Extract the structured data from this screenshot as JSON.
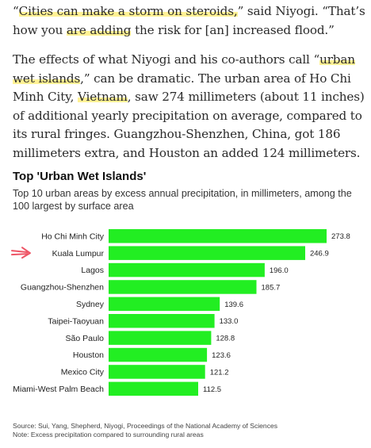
{
  "article": {
    "p1": {
      "t1": "“",
      "h1": "Cities can make a storm on steroids,",
      "t2": "” said Niyogi. “That’s how you ",
      "h2": "are adding",
      "t3": " the risk for [an] increased flood.”"
    },
    "p2": {
      "t1": "The effects of what Niyogi and his co-authors call “",
      "h1": "urban wet islands",
      "t2": ",” can be dramatic. The urban area of Ho Chi Minh City, ",
      "h2": "Vietnam",
      "t3": ", saw 274 millimeters (about 11 inches) of additional yearly precipitation on average, compared to its rural fringes. Guangzhou-Shenzhen, China, got 186 millimeters extra, and Houston an added 124 millimeters."
    }
  },
  "chart_data": {
    "type": "bar",
    "orientation": "horizontal",
    "title": "Top 'Urban Wet Islands'",
    "subtitle": "Top 10 urban areas by excess annual precipitation, in millimeters, among the 100 largest by surface area",
    "categories": [
      "Ho Chi Minh City",
      "Kuala Lumpur",
      "Lagos",
      "Guangzhou-Shenzhen",
      "Sydney",
      "Taipei-Taoyuan",
      "São Paulo",
      "Houston",
      "Mexico City",
      "Miami-West Palm Beach"
    ],
    "values": [
      273.8,
      246.9,
      196.0,
      185.7,
      139.6,
      133.0,
      128.8,
      123.6,
      121.2,
      112.5
    ],
    "value_labels": [
      "273.8",
      "246.9",
      "196.0",
      "185.7",
      "139.6",
      "133.0",
      "128.8",
      "123.6",
      "121.2",
      "112.5"
    ],
    "xlim": [
      0,
      273.8
    ],
    "bar_color": "#22ee22",
    "grid": false,
    "legend": "none",
    "annotation": {
      "type": "arrow",
      "color": "#ee5566",
      "points_to": "Kuala Lumpur"
    }
  },
  "source": {
    "line1": "Source: Sui, Yang, Shepherd, Niyogi, Proceedings of the National Academy of Sciences",
    "line2": "Note: Excess precipitation compared to surrounding rural areas"
  }
}
